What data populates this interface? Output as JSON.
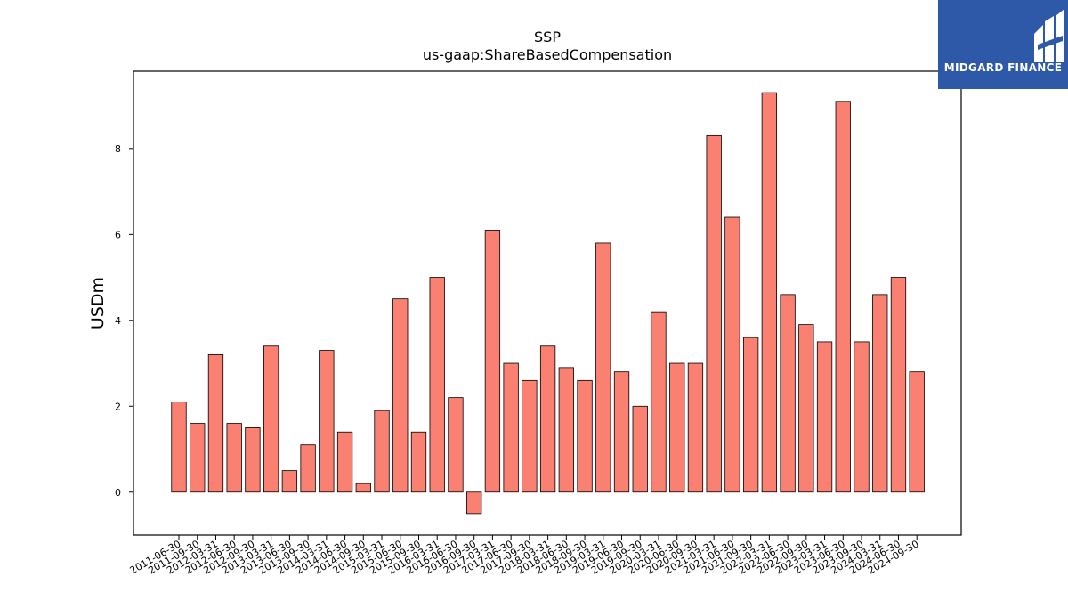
{
  "chart_data": {
    "type": "bar",
    "title": "SSP",
    "subtitle": "us-gaap:ShareBasedCompensation",
    "ylabel": "USDm",
    "xlabel": "",
    "ylim": [
      -1,
      9.8
    ],
    "yticks": [
      0,
      2,
      4,
      6,
      8
    ],
    "grid": false,
    "bar_color": "#fa8072",
    "bar_edge_color": "#000000",
    "categories": [
      "2011-06-30",
      "2011-09-30",
      "2012-03-31",
      "2012-06-30",
      "2012-09-30",
      "2013-03-31",
      "2013-06-30",
      "2013-09-30",
      "2014-03-31",
      "2014-06-30",
      "2014-09-30",
      "2015-03-31",
      "2015-06-30",
      "2015-09-30",
      "2016-03-31",
      "2016-06-30",
      "2016-09-30",
      "2017-03-31",
      "2017-06-30",
      "2017-09-30",
      "2018-03-31",
      "2018-06-30",
      "2018-09-30",
      "2019-03-31",
      "2019-06-30",
      "2019-09-30",
      "2020-03-31",
      "2020-06-30",
      "2020-09-30",
      "2021-03-31",
      "2021-06-30",
      "2021-09-30",
      "2022-03-31",
      "2022-06-30",
      "2022-09-30",
      "2023-03-31",
      "2023-06-30",
      "2023-09-30",
      "2024-03-31",
      "2024-06-30",
      "2024-09-30"
    ],
    "values": [
      2.1,
      1.6,
      3.2,
      1.6,
      1.5,
      3.4,
      0.5,
      1.1,
      3.3,
      1.4,
      0.2,
      1.9,
      4.5,
      1.4,
      5.0,
      2.2,
      -0.5,
      6.1,
      3.0,
      2.6,
      3.4,
      2.9,
      2.6,
      5.8,
      2.8,
      2.0,
      4.2,
      3.0,
      3.0,
      8.3,
      6.4,
      3.6,
      9.3,
      4.6,
      3.9,
      3.5,
      9.1,
      3.5,
      4.6,
      5.0,
      2.8
    ]
  },
  "logo": {
    "text": "MIDGARD FINANCE"
  }
}
